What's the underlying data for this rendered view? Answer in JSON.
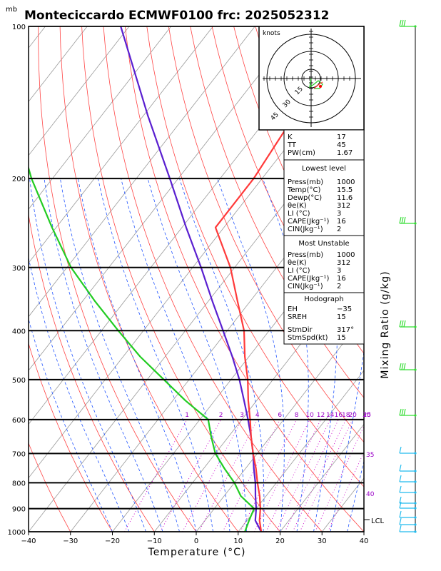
{
  "header": {
    "title": "Monteciccardo ECMWF0100  frc: 2025052312",
    "pressure_unit": "mb"
  },
  "axes": {
    "x_label": "Temperature (°C)",
    "y_right_label": "Mixing Ratio  (g/kg)",
    "x_ticks": [
      "−40",
      "−30",
      "−20",
      "−10",
      "0",
      "10",
      "20",
      "30",
      "40"
    ],
    "y_ticks": [
      "100",
      "200",
      "300",
      "400",
      "500",
      "600",
      "700",
      "800",
      "900",
      "1000"
    ],
    "lcl_label": "LCL",
    "mixing_ratio_labels": [
      "1",
      "2",
      "3",
      "4",
      "6",
      "8",
      "10",
      "12",
      "14",
      "16",
      "18",
      "20",
      "25",
      "30"
    ],
    "right_purple_labels": [
      "30",
      "35",
      "40"
    ]
  },
  "hodograph": {
    "units_label": "knots",
    "ring_labels": [
      "15",
      "30",
      "45"
    ]
  },
  "indices": {
    "rows": [
      {
        "label": "K",
        "value": "17"
      },
      {
        "label": "TT",
        "value": "45"
      },
      {
        "label": "PW(cm)",
        "value": "1.67"
      }
    ]
  },
  "lowest_level": {
    "heading": "Lowest level",
    "rows": [
      {
        "label": "Press(mb)",
        "value": "1000"
      },
      {
        "label": "Temp(°C)",
        "value": "15.5"
      },
      {
        "label": "Dewp(°C)",
        "value": "11.6"
      },
      {
        "label": "θe(K)",
        "value": "312"
      },
      {
        "label": "LI (°C)",
        "value": "3"
      },
      {
        "label": "CAPE(Jkg⁻¹)",
        "value": "16"
      },
      {
        "label": "CIN(Jkg⁻¹)",
        "value": "2"
      }
    ]
  },
  "most_unstable": {
    "heading": "Most Unstable",
    "rows": [
      {
        "label": "Press(mb)",
        "value": "1000"
      },
      {
        "label": "θe(K)",
        "value": "312"
      },
      {
        "label": "LI (°C)",
        "value": "3"
      },
      {
        "label": "CAPE(Jkg⁻¹)",
        "value": "16"
      },
      {
        "label": "CIN(Jkg⁻¹)",
        "value": "2"
      }
    ]
  },
  "hodograph_box": {
    "heading": "Hodograph",
    "rows": [
      {
        "label": "EH",
        "value": "−35"
      },
      {
        "label": "SREH",
        "value": "15"
      },
      {
        "label": "StmDir",
        "value": "317°"
      },
      {
        "label": "StmSpd(kt)",
        "value": "15"
      }
    ]
  },
  "colors": {
    "temperature": "#ff3a3a",
    "dewpoint": "#22cc22",
    "parcel": "#5a1fd0",
    "isotherm": "#999999",
    "dry_adiabat": "#ff4444",
    "moist_adiabat": "#2255ff",
    "mixing_ratio": "#cc00cc",
    "wind_barb": "#22bbee",
    "wind_barb_upper": "#33dd33"
  },
  "chart_data": {
    "type": "line",
    "title": "Monteciccardo ECMWF0100  frc: 2025052312",
    "xlabel": "Temperature (°C)",
    "ylabel": "mb",
    "x_range": [
      -40,
      40
    ],
    "y_range_mb": [
      1000,
      100
    ],
    "y_scale": "log",
    "skewed": true,
    "series": [
      {
        "key": "temperature",
        "pressure": [
          1000,
          950,
          900,
          850,
          800,
          750,
          700,
          650,
          600,
          550,
          500,
          450,
          400,
          350,
          300,
          250,
          200,
          150,
          100
        ],
        "values": [
          15.5,
          13,
          11,
          8.5,
          5.5,
          2.5,
          -1,
          -4.5,
          -8,
          -12,
          -16,
          -21,
          -26,
          -33,
          -41,
          -52,
          -52,
          -54,
          -60
        ]
      },
      {
        "key": "dewpoint",
        "pressure": [
          1000,
          950,
          900,
          850,
          800,
          750,
          700,
          650,
          600,
          550,
          500,
          450,
          400,
          350,
          300,
          250,
          200,
          150,
          100
        ],
        "values": [
          11.6,
          10.5,
          9.5,
          4,
          0,
          -5,
          -10,
          -14,
          -18,
          -27,
          -36,
          -46,
          -56,
          -67,
          -79,
          -91,
          -105,
          -121,
          -140
        ]
      },
      {
        "key": "parcel",
        "pressure": [
          1000,
          950,
          900,
          850,
          800,
          750,
          700,
          650,
          600,
          550,
          500,
          450,
          400,
          350,
          300,
          250,
          200,
          150,
          100
        ],
        "values": [
          15.5,
          12,
          10,
          7.5,
          5,
          2,
          -1,
          -4.5,
          -8.5,
          -13,
          -18,
          -24,
          -31,
          -39,
          -48,
          -59,
          -72,
          -89,
          -112
        ]
      }
    ]
  }
}
